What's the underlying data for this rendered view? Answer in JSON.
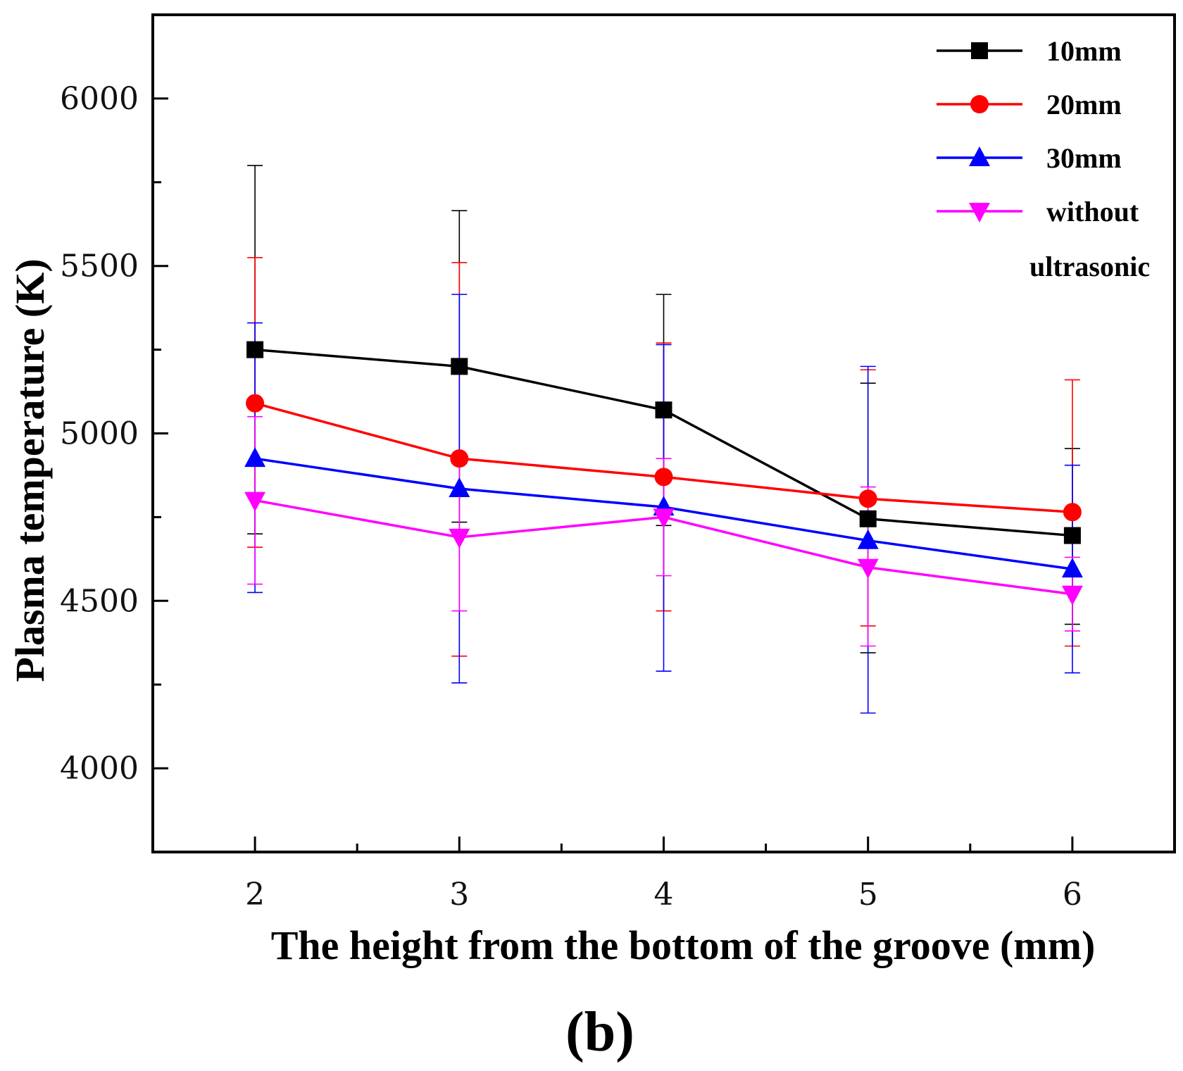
{
  "chart_data": {
    "type": "line",
    "title": "",
    "panel_label": "(b)",
    "xlabel": "The height from the bottom of the groove (mm)",
    "ylabel": "Plasma temperature (K)",
    "x": [
      2,
      3,
      4,
      5,
      6
    ],
    "xlim": [
      1.5,
      6.5
    ],
    "ylim": [
      3750,
      6250
    ],
    "xticks": [
      "2",
      "3",
      "4",
      "5",
      "6"
    ],
    "yticks": [
      4000,
      4500,
      5000,
      5500,
      6000
    ],
    "ytick_labels": [
      "4000",
      "4500",
      "5000",
      "5500",
      "6000"
    ],
    "legend_position": "top-right",
    "series": [
      {
        "name": "10mm",
        "legend_label": "10mm",
        "color": "#000000",
        "marker": "square",
        "values": [
          5250,
          5200,
          5070,
          4745,
          4695
        ],
        "err_upper": [
          5800,
          5665,
          5415,
          5150,
          4955
        ],
        "err_lower": [
          4700,
          4735,
          4725,
          4345,
          4430
        ]
      },
      {
        "name": "20mm",
        "legend_label": "20mm",
        "color": "#ff0000",
        "marker": "circle",
        "values": [
          5090,
          4925,
          4870,
          4805,
          4765
        ],
        "err_upper": [
          5525,
          5510,
          5270,
          5190,
          5160
        ],
        "err_lower": [
          4660,
          4335,
          4470,
          4425,
          4365
        ]
      },
      {
        "name": "30mm",
        "legend_label": "30mm",
        "color": "#0000ff",
        "marker": "triangle-up",
        "values": [
          4925,
          4835,
          4780,
          4680,
          4595
        ],
        "err_upper": [
          5330,
          5415,
          5265,
          5200,
          4905
        ],
        "err_lower": [
          4525,
          4255,
          4290,
          4165,
          4285
        ]
      },
      {
        "name": "without ultrasonic",
        "legend_label": "without",
        "legend_label_line2": "ultrasonic",
        "color": "#ff00ff",
        "marker": "triangle-down",
        "values": [
          4800,
          4690,
          4750,
          4600,
          4520
        ],
        "err_upper": [
          5050,
          4910,
          4925,
          4840,
          4630
        ],
        "err_lower": [
          4550,
          4470,
          4575,
          4365,
          4410
        ]
      }
    ]
  }
}
